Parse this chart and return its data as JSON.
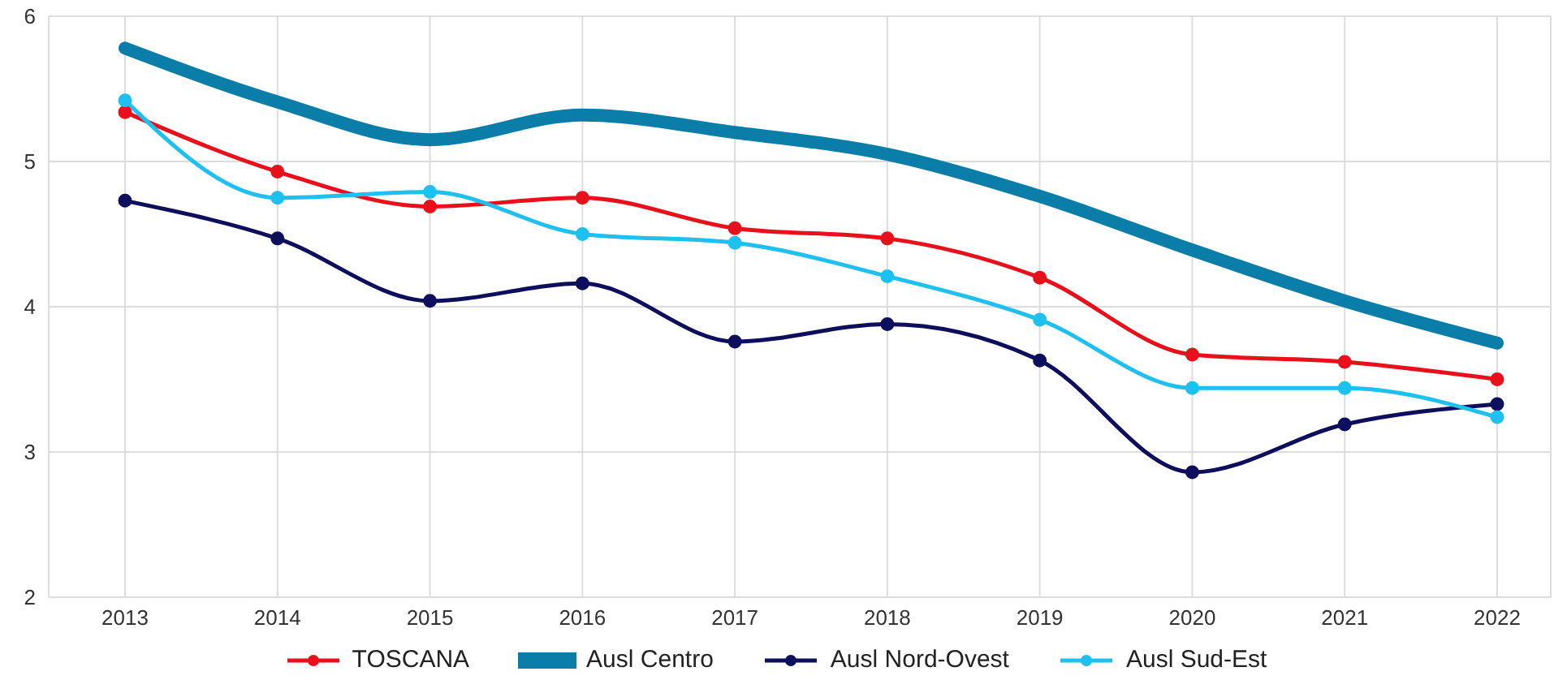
{
  "chart_data": {
    "type": "line",
    "categories": [
      "2013",
      "2014",
      "2015",
      "2016",
      "2017",
      "2018",
      "2019",
      "2020",
      "2021",
      "2022"
    ],
    "series": [
      {
        "name": "TOSCANA",
        "color": "#e8101a",
        "marker": "circle",
        "values": [
          5.34,
          4.93,
          4.69,
          4.75,
          4.54,
          4.47,
          4.2,
          3.67,
          3.62,
          3.5
        ]
      },
      {
        "name": "Ausl Centro",
        "color": "#0a7ea8",
        "marker": "none",
        "values": [
          5.78,
          5.41,
          5.15,
          5.32,
          5.2,
          5.05,
          4.76,
          4.39,
          4.04,
          3.75
        ]
      },
      {
        "name": "Ausl Nord-Ovest",
        "color": "#0d0f5c",
        "marker": "circle",
        "values": [
          4.73,
          4.47,
          4.04,
          4.16,
          3.76,
          3.88,
          3.63,
          2.86,
          3.19,
          3.33
        ]
      },
      {
        "name": "Ausl Sud-Est",
        "color": "#1ec0ef",
        "marker": "circle",
        "values": [
          5.42,
          4.75,
          4.79,
          4.5,
          4.44,
          4.21,
          3.91,
          3.44,
          3.44,
          3.24
        ]
      }
    ],
    "ylim": [
      2,
      6
    ],
    "yticks": [
      2,
      3,
      4,
      5,
      6
    ],
    "grid": true,
    "legend": "bottom"
  }
}
